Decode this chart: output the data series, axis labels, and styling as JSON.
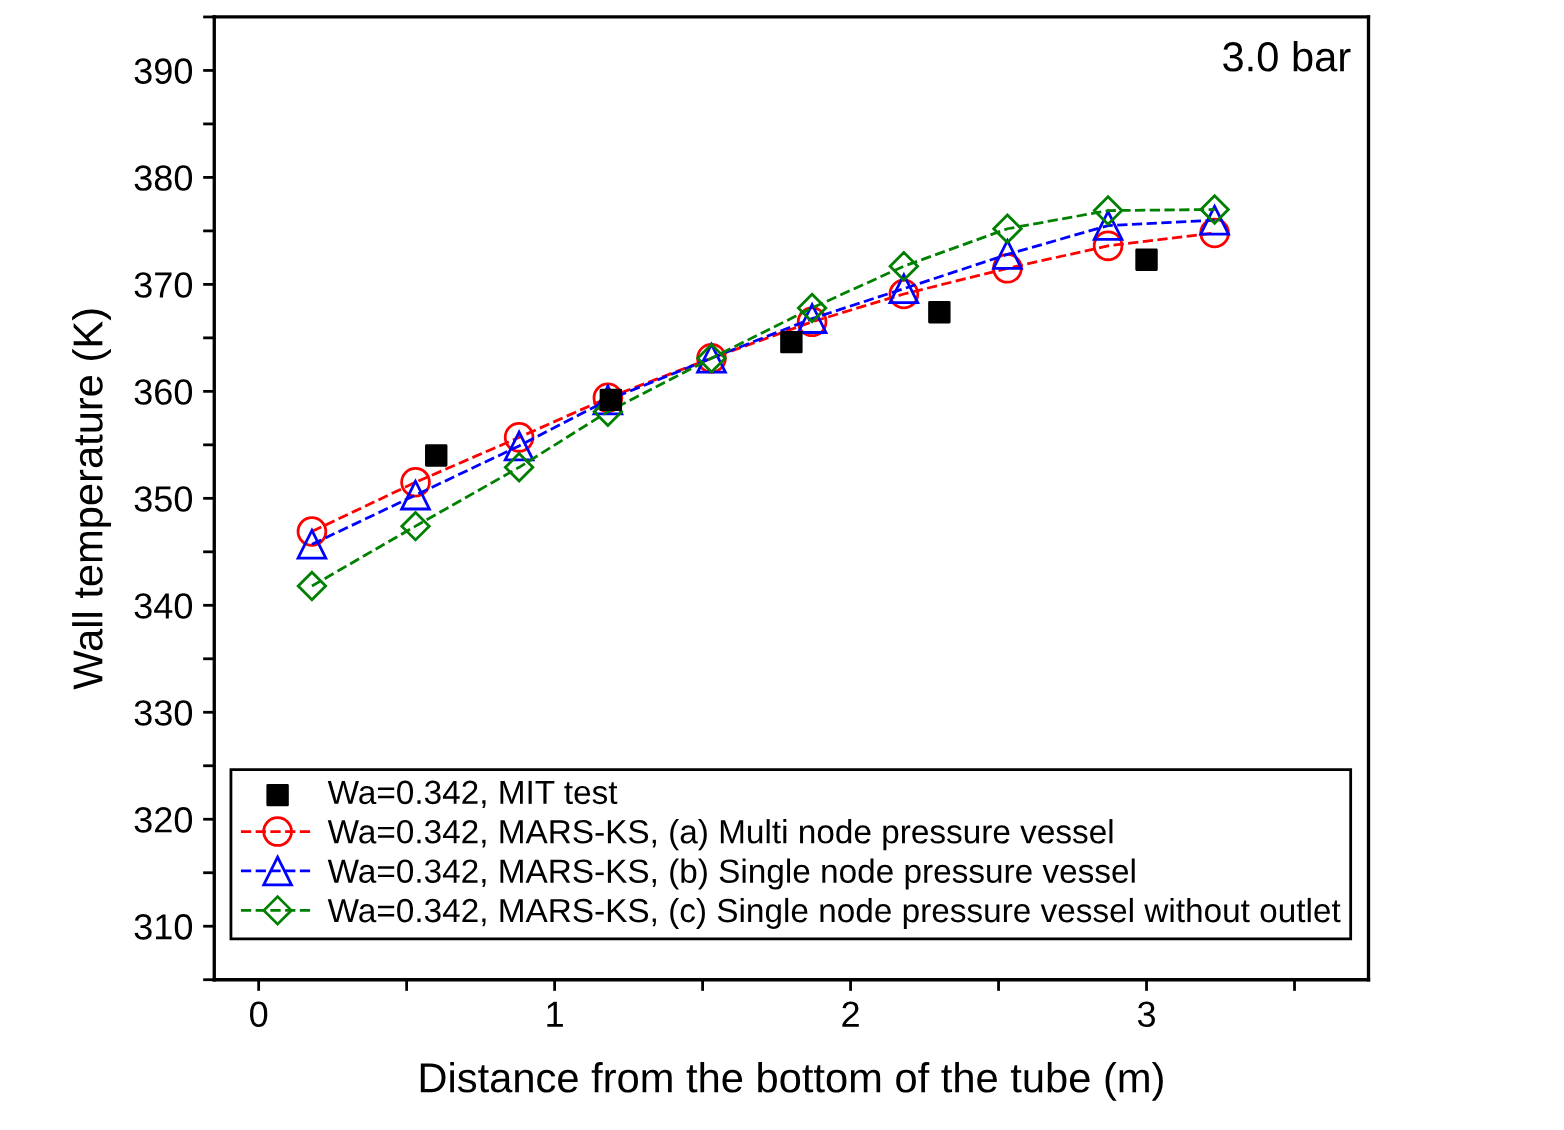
{
  "chart_data": {
    "type": "line",
    "xlabel": "Distance from the bottom of the tube (m)",
    "ylabel": "Wall temperature (K)",
    "annotations": [
      "3.0 bar"
    ],
    "xlim": [
      -0.15,
      3.75
    ],
    "ylim": [
      305,
      395
    ],
    "xticks": [
      0,
      {
        "value": 0.5,
        "label": null
      },
      1,
      {
        "value": 1.5,
        "label": null
      },
      2,
      {
        "value": 2.5,
        "label": null
      },
      3,
      {
        "value": 3.5,
        "label": null
      }
    ],
    "yticks": [
      {
        "value": 305,
        "label": null
      },
      310,
      {
        "value": 315,
        "label": null
      },
      320,
      {
        "value": 325,
        "label": null
      },
      330,
      {
        "value": 335,
        "label": null
      },
      340,
      {
        "value": 345,
        "label": null
      },
      350,
      {
        "value": 355,
        "label": null
      },
      360,
      {
        "value": 365,
        "label": null
      },
      370,
      {
        "value": 375,
        "label": null
      },
      380,
      {
        "value": 385,
        "label": null
      },
      390,
      {
        "value": 395,
        "label": null
      }
    ],
    "grid": false,
    "legend": "bottom left",
    "series": [
      {
        "name": "Wa=0.342, MIT test",
        "type": "scatter",
        "marker": "square",
        "color": "#000000",
        "x": [
          0.6,
          1.19,
          1.8,
          2.3,
          3.0
        ],
        "values": [
          354.0,
          359.2,
          364.6,
          367.4,
          372.3
        ]
      },
      {
        "name": "Wa=0.342, MARS-KS, (a) Multi node pressure vessel",
        "marker": "circle",
        "line_style": "dashed",
        "color": "#ff0000",
        "x": [
          0.18,
          0.53,
          0.88,
          1.18,
          1.53,
          1.87,
          2.18,
          2.53,
          2.87,
          3.23
        ],
        "values": [
          346.9,
          351.5,
          355.7,
          359.4,
          363.1,
          366.5,
          369.1,
          371.5,
          373.6,
          374.8
        ]
      },
      {
        "name": "Wa=0.342, MARS-KS, (b) Single node pressure vessel",
        "marker": "triangle",
        "line_style": "dashed",
        "color": "#0000ff",
        "x": [
          0.18,
          0.53,
          0.88,
          1.18,
          1.53,
          1.87,
          2.18,
          2.53,
          2.87,
          3.23
        ],
        "values": [
          345.7,
          350.3,
          354.9,
          359.2,
          363.1,
          366.8,
          369.6,
          372.8,
          375.5,
          376.0
        ]
      },
      {
        "name": "Wa=0.342, MARS-KS, (c) Single node pressure vessel without outlet",
        "marker": "diamond",
        "line_style": "dashed",
        "color": "#008000",
        "x": [
          0.18,
          0.53,
          0.88,
          1.18,
          1.53,
          1.87,
          2.18,
          2.53,
          2.87,
          3.23
        ],
        "values": [
          341.8,
          347.4,
          352.9,
          358.1,
          363.1,
          367.8,
          371.7,
          375.2,
          376.9,
          377.0
        ]
      }
    ]
  }
}
